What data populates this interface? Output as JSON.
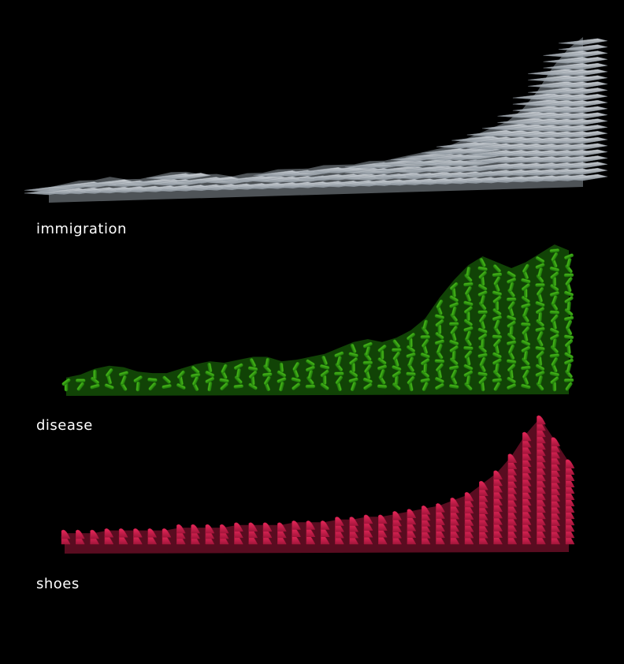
{
  "chart_data": [
    {
      "type": "area",
      "title": "immigration",
      "style": "stacked-3d-glyph-streamgraph",
      "glyph": "airplane-icon",
      "color": "#dfe3e8",
      "shade_color": "#8e979f",
      "values": [
        2,
        3,
        4,
        4,
        5,
        4,
        4,
        5,
        6,
        6,
        5,
        5,
        4,
        5,
        5,
        6,
        6,
        6,
        7,
        7,
        7,
        8,
        8,
        9,
        10,
        11,
        12,
        14,
        16,
        18,
        20,
        24,
        30,
        38,
        44,
        48
      ]
    },
    {
      "type": "area",
      "title": "disease",
      "style": "stacked-3d-glyph-streamgraph",
      "glyph": "germ-icon",
      "color": "#4fc21c",
      "shade_color": "#1f7a0b",
      "values": [
        6,
        8,
        12,
        14,
        13,
        10,
        9,
        9,
        12,
        15,
        17,
        16,
        18,
        20,
        20,
        17,
        18,
        20,
        22,
        26,
        30,
        32,
        30,
        33,
        38,
        46,
        60,
        72,
        82,
        88,
        84,
        80,
        84,
        90,
        96,
        92
      ]
    },
    {
      "type": "area",
      "title": "shoes",
      "style": "stacked-3d-glyph-streamgraph",
      "glyph": "high-heel-shoe-icon",
      "color": "#e8285a",
      "shade_color": "#a3153b",
      "values": [
        4,
        4,
        4,
        5,
        5,
        5,
        5,
        5,
        6,
        6,
        6,
        6,
        7,
        7,
        7,
        7,
        8,
        8,
        8,
        9,
        9,
        10,
        10,
        11,
        12,
        13,
        14,
        16,
        18,
        22,
        26,
        32,
        40,
        46,
        38,
        30
      ]
    }
  ]
}
